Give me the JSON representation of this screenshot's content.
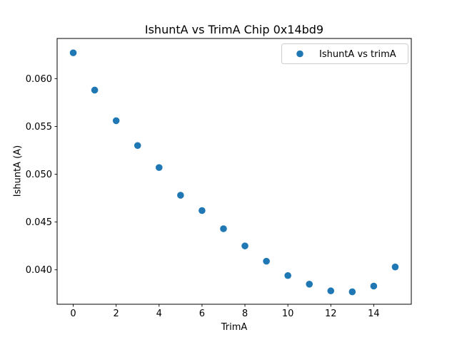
{
  "chart_data": {
    "type": "scatter",
    "title": "IshuntA vs TrimA Chip 0x14bd9",
    "xlabel": "TrimA",
    "ylabel": "IshuntA (A)",
    "legend": {
      "position": "upper right",
      "entries": [
        "IshuntA vs trimA"
      ]
    },
    "series": [
      {
        "name": "IshuntA vs trimA",
        "marker": "circle",
        "color": "#1f77b4",
        "x": [
          0,
          1,
          2,
          3,
          4,
          5,
          6,
          7,
          8,
          9,
          10,
          11,
          12,
          13,
          14,
          15
        ],
        "y": [
          0.0627,
          0.0588,
          0.0556,
          0.053,
          0.0507,
          0.0478,
          0.0462,
          0.0443,
          0.0425,
          0.0409,
          0.0394,
          0.0385,
          0.0378,
          0.0377,
          0.0383,
          0.0403
        ]
      }
    ],
    "xlim": [
      -0.75,
      15.75
    ],
    "ylim": [
      0.0364,
      0.0642
    ],
    "xticks": [
      0,
      2,
      4,
      6,
      8,
      10,
      12,
      14
    ],
    "yticks": [
      0.04,
      0.045,
      0.05,
      0.055,
      0.06
    ],
    "ytick_labels": [
      "0.040",
      "0.045",
      "0.050",
      "0.055",
      "0.060"
    ],
    "grid": false
  },
  "colors": {
    "marker": "#1f77b4",
    "spine": "#000000",
    "background": "#ffffff",
    "legend_border": "#cccccc"
  }
}
